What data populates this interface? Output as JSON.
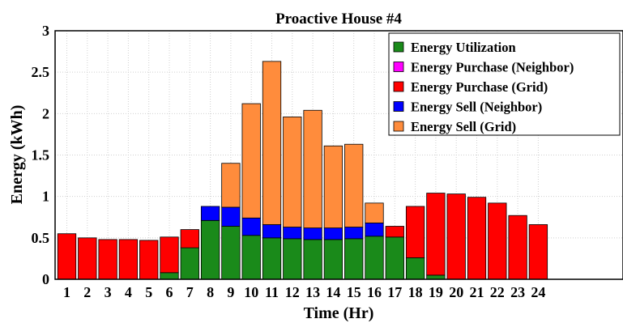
{
  "chart_data": {
    "type": "bar",
    "stacked": true,
    "title": "Proactive House #4",
    "xlabel": "Time (Hr)",
    "ylabel": "Energy (kWh)",
    "ylim": [
      0,
      3
    ],
    "yticks": [
      "0",
      "0.5",
      "1",
      "1.5",
      "2",
      "2.5",
      "3"
    ],
    "categories": [
      "1",
      "2",
      "3",
      "4",
      "5",
      "6",
      "7",
      "8",
      "9",
      "10",
      "11",
      "12",
      "13",
      "14",
      "15",
      "16",
      "17",
      "18",
      "19",
      "20",
      "21",
      "22",
      "23",
      "24"
    ],
    "grid": true,
    "legend_position": "top-right",
    "series": [
      {
        "name": "Energy Utilization",
        "color": "#1a8a1a",
        "values": [
          0,
          0,
          0,
          0,
          0,
          0.08,
          0.38,
          0.71,
          0.64,
          0.53,
          0.5,
          0.49,
          0.48,
          0.48,
          0.49,
          0.52,
          0.51,
          0.26,
          0.05,
          0,
          0,
          0,
          0,
          0
        ]
      },
      {
        "name": "Energy Purchase (Neighbor)",
        "color": "#ff00ff",
        "values": [
          0,
          0,
          0,
          0,
          0,
          0,
          0,
          0,
          0,
          0,
          0,
          0,
          0,
          0,
          0,
          0,
          0,
          0,
          0,
          0,
          0,
          0,
          0,
          0
        ]
      },
      {
        "name": "Energy Purchase (Grid)",
        "color": "#ff0000",
        "values": [
          0.55,
          0.5,
          0.48,
          0.48,
          0.47,
          0.43,
          0.22,
          0,
          0,
          0,
          0,
          0,
          0,
          0,
          0,
          0,
          0.13,
          0.62,
          0.99,
          1.03,
          0.99,
          0.92,
          0.77,
          0.66
        ]
      },
      {
        "name": "Energy Sell (Neighbor)",
        "color": "#0000ff",
        "values": [
          0,
          0,
          0,
          0,
          0,
          0,
          0,
          0.17,
          0.23,
          0.21,
          0.16,
          0.14,
          0.14,
          0.14,
          0.14,
          0.16,
          0,
          0,
          0,
          0,
          0,
          0,
          0,
          0
        ]
      },
      {
        "name": "Energy Sell (Grid)",
        "color": "#ff8c3c",
        "values": [
          0,
          0,
          0,
          0,
          0,
          0,
          0,
          0,
          0.53,
          1.38,
          1.97,
          1.33,
          1.42,
          0.99,
          1.0,
          0.24,
          0,
          0,
          0,
          0,
          0,
          0,
          0,
          0
        ]
      }
    ]
  }
}
